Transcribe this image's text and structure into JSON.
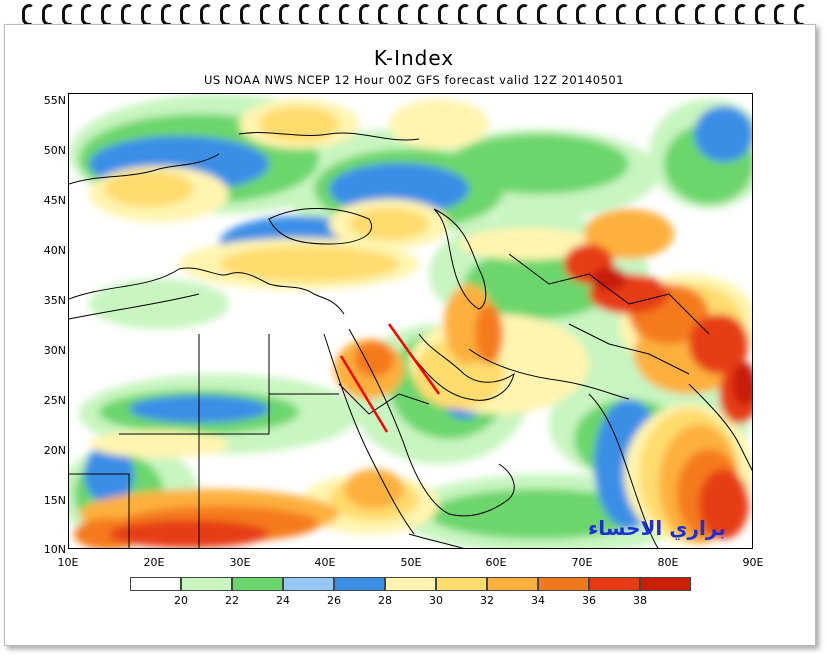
{
  "title": "K-Index",
  "subtitle": "US NOAA NWS NCEP 12 Hour 00Z GFS forecast valid 12Z 20140501",
  "watermark": "براري الاحساء",
  "lat_labels": [
    "55N",
    "50N",
    "45N",
    "40N",
    "35N",
    "30N",
    "25N",
    "20N",
    "15N",
    "10N"
  ],
  "lon_labels": [
    "10E",
    "20E",
    "30E",
    "40E",
    "50E",
    "60E",
    "70E",
    "80E",
    "90E"
  ],
  "legend": {
    "labels": [
      "20",
      "22",
      "24",
      "26",
      "28",
      "30",
      "32",
      "34",
      "36",
      "38"
    ],
    "colors": [
      "#ffffff",
      "#c8f5c0",
      "#6cd66c",
      "#96c8f5",
      "#3a8ee6",
      "#fff5b0",
      "#ffdc6e",
      "#fdb03c",
      "#f57a1e",
      "#e63c14",
      "#c81e0a"
    ]
  },
  "colors": {
    "annotation_line": "#ff0000",
    "coast": "#000000",
    "border": "#000000"
  }
}
